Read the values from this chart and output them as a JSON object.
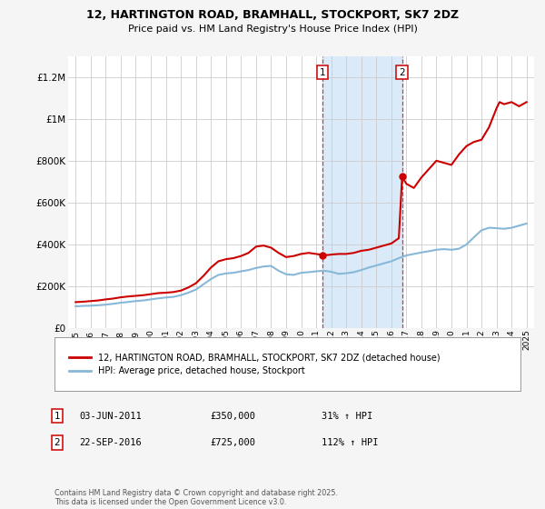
{
  "title_line1": "12, HARTINGTON ROAD, BRAMHALL, STOCKPORT, SK7 2DZ",
  "title_line2": "Price paid vs. HM Land Registry's House Price Index (HPI)",
  "legend_label_red": "12, HARTINGTON ROAD, BRAMHALL, STOCKPORT, SK7 2DZ (detached house)",
  "legend_label_blue": "HPI: Average price, detached house, Stockport",
  "sale1_label": "1",
  "sale1_date_str": "03-JUN-2011",
  "sale1_x": 2011.42,
  "sale1_price": 350000,
  "sale1_note": "31% ↑ HPI",
  "sale2_label": "2",
  "sale2_date_str": "22-SEP-2016",
  "sale2_x": 2016.72,
  "sale2_price": 725000,
  "sale2_note": "112% ↑ HPI",
  "shaded_x_start": 2011.42,
  "shaded_x_end": 2016.72,
  "ylabel_ticks": [
    "£0",
    "£200K",
    "£400K",
    "£600K",
    "£800K",
    "£1M",
    "£1.2M"
  ],
  "ytick_values": [
    0,
    200000,
    400000,
    600000,
    800000,
    1000000,
    1200000
  ],
  "ylim": [
    0,
    1300000
  ],
  "xlim_start": 1994.5,
  "xlim_end": 2025.5,
  "xtick_years": [
    1995,
    1996,
    1997,
    1998,
    1999,
    2000,
    2001,
    2002,
    2003,
    2004,
    2005,
    2006,
    2007,
    2008,
    2009,
    2010,
    2011,
    2012,
    2013,
    2014,
    2015,
    2016,
    2017,
    2018,
    2019,
    2020,
    2021,
    2022,
    2023,
    2024,
    2025
  ],
  "background_color": "#f5f5f5",
  "plot_bg_color": "#ffffff",
  "shaded_color": "#daeaf8",
  "red_color": "#cc0000",
  "blue_color": "#88b8d8",
  "grid_color": "#cccccc",
  "footer_text": "Contains HM Land Registry data © Crown copyright and database right 2025.\nThis data is licensed under the Open Government Licence v3.0.",
  "red_data_x": [
    1995.0,
    1995.5,
    1996.0,
    1996.5,
    1997.0,
    1997.5,
    1998.0,
    1998.5,
    1999.0,
    1999.5,
    2000.0,
    2000.5,
    2001.0,
    2001.5,
    2002.0,
    2002.5,
    2003.0,
    2003.5,
    2004.0,
    2004.5,
    2005.0,
    2005.5,
    2006.0,
    2006.5,
    2007.0,
    2007.5,
    2008.0,
    2008.5,
    2009.0,
    2009.5,
    2010.0,
    2010.5,
    2011.0,
    2011.42,
    2011.8,
    2012.0,
    2012.5,
    2013.0,
    2013.5,
    2014.0,
    2014.5,
    2015.0,
    2015.5,
    2016.0,
    2016.5,
    2016.72,
    2016.73,
    2017.0,
    2017.5,
    2018.0,
    2018.5,
    2019.0,
    2019.5,
    2020.0,
    2020.5,
    2021.0,
    2021.5,
    2022.0,
    2022.5,
    2023.0,
    2023.2,
    2023.5,
    2024.0,
    2024.5,
    2025.0
  ],
  "red_data_y": [
    125000,
    127000,
    130000,
    133000,
    138000,
    142000,
    148000,
    152000,
    155000,
    158000,
    163000,
    168000,
    170000,
    173000,
    180000,
    195000,
    215000,
    250000,
    290000,
    320000,
    330000,
    335000,
    345000,
    360000,
    390000,
    395000,
    385000,
    360000,
    340000,
    345000,
    355000,
    360000,
    355000,
    350000,
    350000,
    352000,
    355000,
    355000,
    360000,
    370000,
    375000,
    385000,
    395000,
    405000,
    430000,
    725000,
    722000,
    690000,
    670000,
    720000,
    760000,
    800000,
    790000,
    780000,
    830000,
    870000,
    890000,
    900000,
    960000,
    1050000,
    1080000,
    1070000,
    1080000,
    1060000,
    1080000
  ],
  "blue_data_x": [
    1995.0,
    1995.5,
    1996.0,
    1996.5,
    1997.0,
    1997.5,
    1998.0,
    1998.5,
    1999.0,
    1999.5,
    2000.0,
    2000.5,
    2001.0,
    2001.5,
    2002.0,
    2002.5,
    2003.0,
    2003.5,
    2004.0,
    2004.5,
    2005.0,
    2005.5,
    2006.0,
    2006.5,
    2007.0,
    2007.5,
    2008.0,
    2008.5,
    2009.0,
    2009.5,
    2010.0,
    2010.5,
    2011.0,
    2011.5,
    2012.0,
    2012.5,
    2013.0,
    2013.5,
    2014.0,
    2014.5,
    2015.0,
    2015.5,
    2016.0,
    2016.5,
    2017.0,
    2017.5,
    2018.0,
    2018.5,
    2019.0,
    2019.5,
    2020.0,
    2020.5,
    2021.0,
    2021.5,
    2022.0,
    2022.5,
    2023.0,
    2023.5,
    2024.0,
    2024.5,
    2025.0
  ],
  "blue_data_y": [
    105000,
    107000,
    108000,
    110000,
    113000,
    117000,
    122000,
    126000,
    130000,
    133000,
    138000,
    143000,
    147000,
    150000,
    158000,
    170000,
    185000,
    210000,
    235000,
    255000,
    262000,
    265000,
    272000,
    278000,
    288000,
    295000,
    298000,
    275000,
    258000,
    255000,
    265000,
    268000,
    272000,
    275000,
    270000,
    260000,
    263000,
    268000,
    278000,
    290000,
    300000,
    310000,
    320000,
    335000,
    348000,
    355000,
    362000,
    368000,
    375000,
    378000,
    375000,
    380000,
    400000,
    435000,
    468000,
    480000,
    478000,
    475000,
    480000,
    490000,
    500000
  ]
}
